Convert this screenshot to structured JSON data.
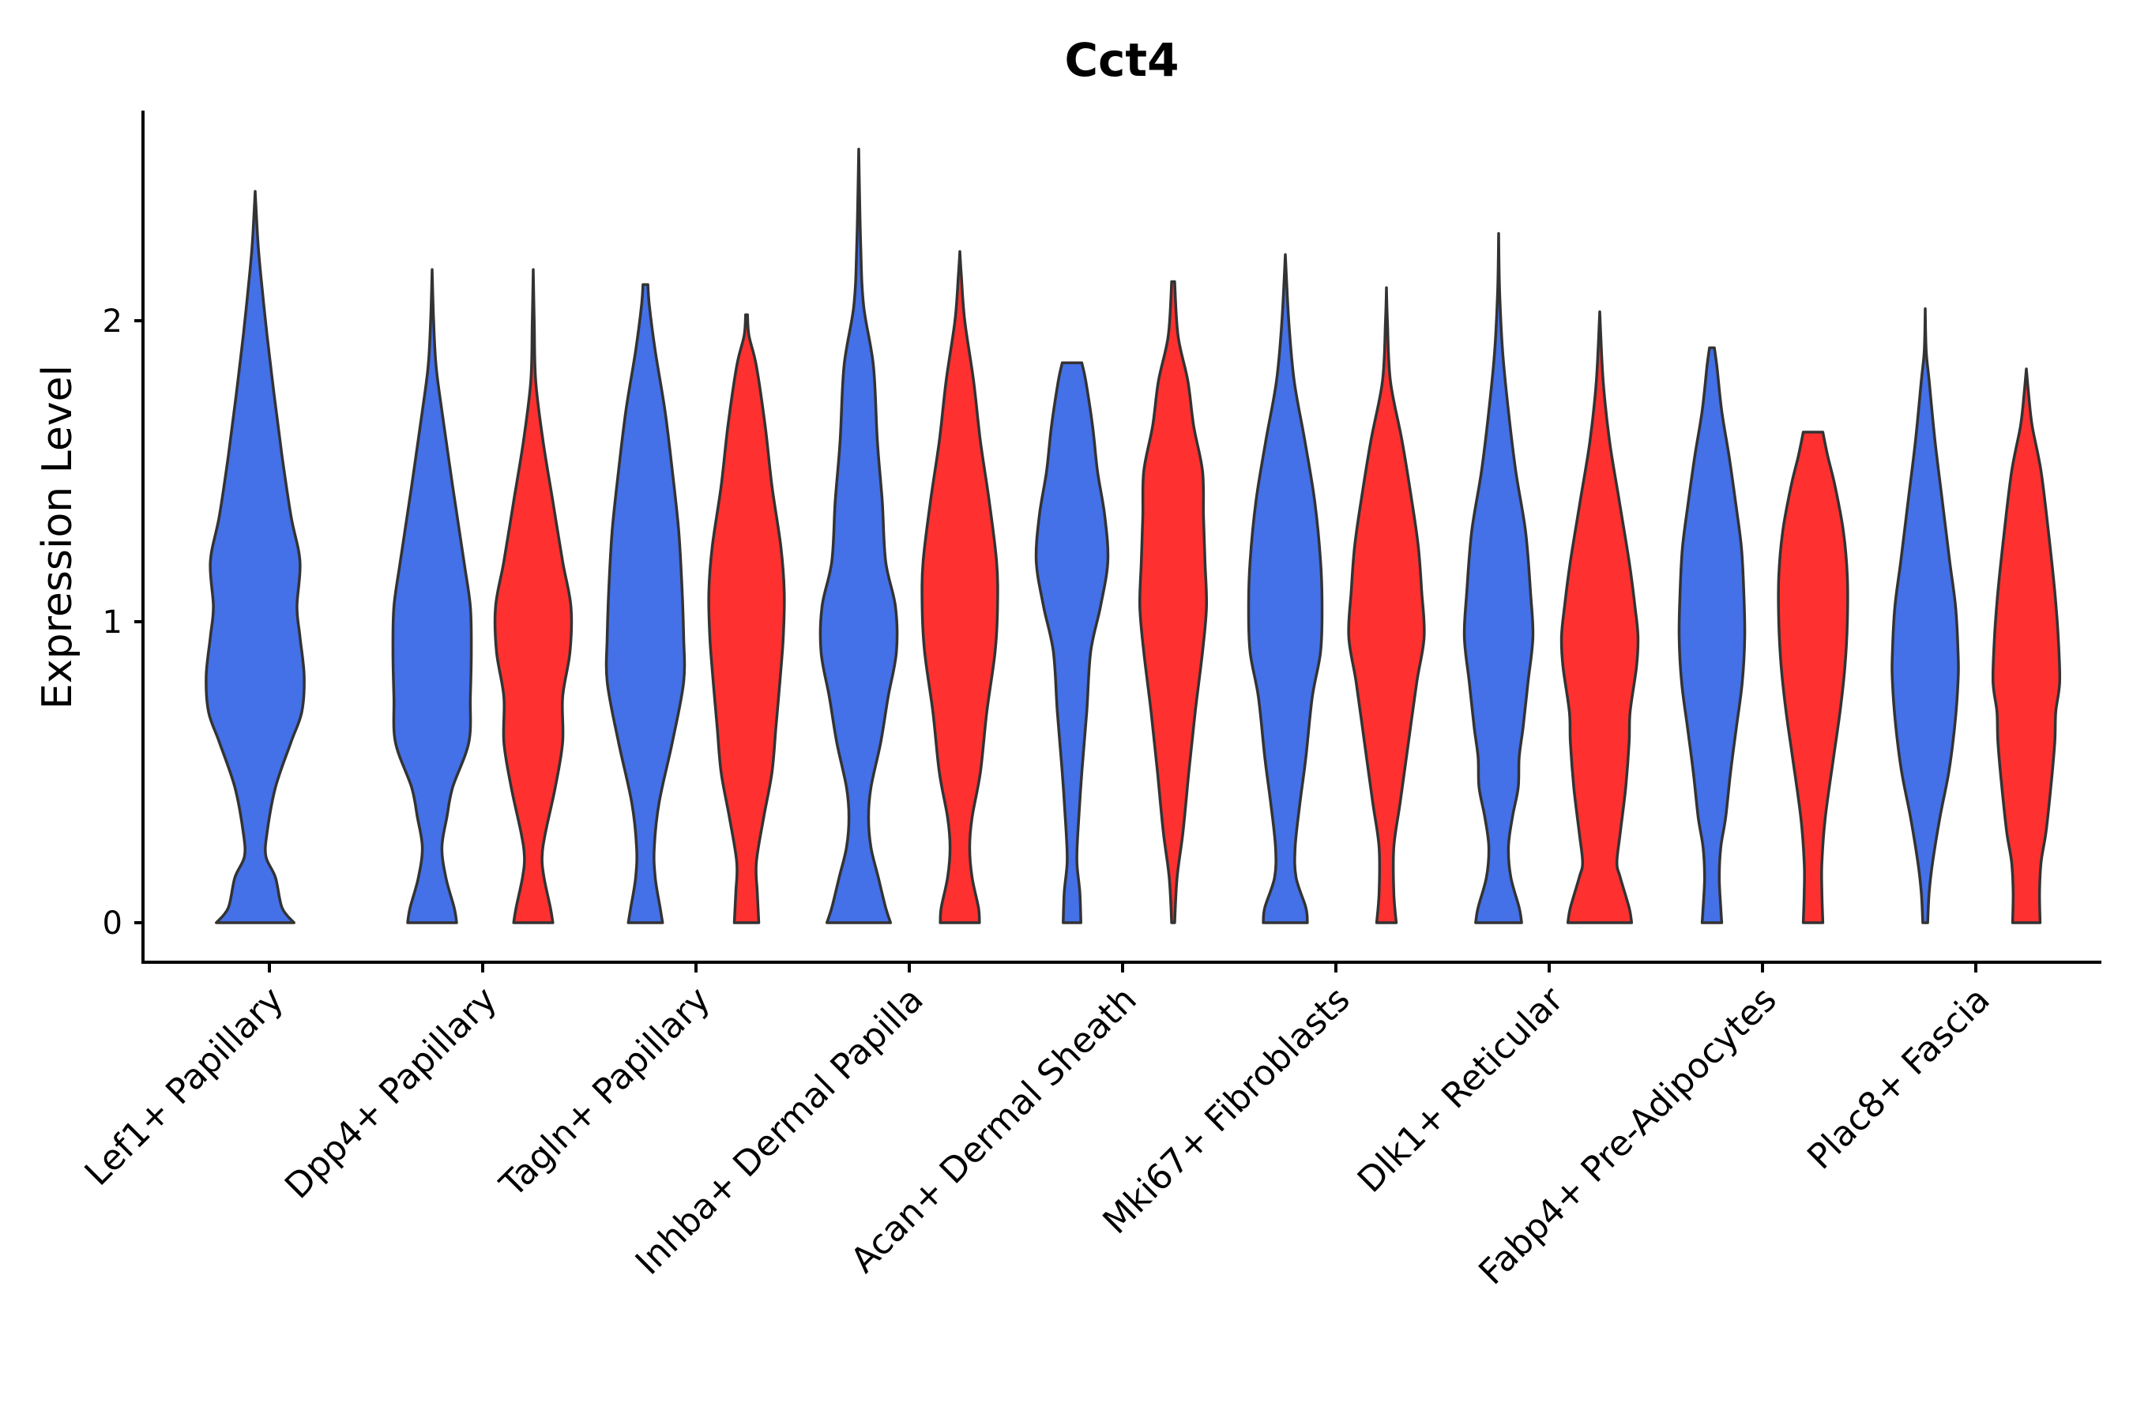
{
  "chart_data": {
    "type": "violin",
    "title": "Cct4",
    "xlabel": "",
    "ylabel": "Expression Level",
    "ylim": [
      -0.13,
      2.7
    ],
    "yticks": [
      0,
      1,
      2
    ],
    "grid": false,
    "legend": "none",
    "categories": [
      "Lef1+ Papillary",
      "Dpp4+ Papillary",
      "Tagln+ Papillary",
      "Inhba+ Dermal Papilla",
      "Acan+ Dermal Sheath",
      "Mki67+ Fibroblasts",
      "Dlk1+ Reticular",
      "Fabp4+ Pre-Adipocytes",
      "Plac8+ Fascia"
    ],
    "colors": {
      "blue": "#4470e8",
      "red": "#ff3030"
    },
    "violins": [
      {
        "category": "Lef1+ Papillary",
        "split": "blue",
        "color": "#4470e8",
        "min": 0,
        "max": 2.43,
        "profile": [
          [
            0,
            0.65
          ],
          [
            0.05,
            0.45
          ],
          [
            0.15,
            0.34
          ],
          [
            0.22,
            0.18
          ],
          [
            0.3,
            0.2
          ],
          [
            0.45,
            0.34
          ],
          [
            0.6,
            0.6
          ],
          [
            0.7,
            0.78
          ],
          [
            0.82,
            0.82
          ],
          [
            0.95,
            0.75
          ],
          [
            1.05,
            0.7
          ],
          [
            1.2,
            0.75
          ],
          [
            1.35,
            0.6
          ],
          [
            1.55,
            0.45
          ],
          [
            1.75,
            0.32
          ],
          [
            1.95,
            0.2
          ],
          [
            2.1,
            0.12
          ],
          [
            2.25,
            0.05
          ],
          [
            2.43,
            0
          ]
        ]
      },
      {
        "category": "Dpp4+ Papillary",
        "split": "blue",
        "color": "#4470e8",
        "min": 0,
        "max": 2.17,
        "profile": [
          [
            0,
            0.5
          ],
          [
            0.05,
            0.45
          ],
          [
            0.15,
            0.28
          ],
          [
            0.25,
            0.2
          ],
          [
            0.35,
            0.3
          ],
          [
            0.45,
            0.42
          ],
          [
            0.6,
            0.75
          ],
          [
            0.75,
            0.78
          ],
          [
            0.9,
            0.8
          ],
          [
            1.05,
            0.78
          ],
          [
            1.2,
            0.65
          ],
          [
            1.45,
            0.42
          ],
          [
            1.7,
            0.2
          ],
          [
            1.85,
            0.08
          ],
          [
            2.0,
            0.03
          ],
          [
            2.17,
            0
          ]
        ]
      },
      {
        "category": "Dpp4+ Papillary",
        "split": "red",
        "color": "#ff3030",
        "min": 0,
        "max": 2.17,
        "profile": [
          [
            0,
            0.4
          ],
          [
            0.05,
            0.35
          ],
          [
            0.15,
            0.22
          ],
          [
            0.22,
            0.18
          ],
          [
            0.3,
            0.25
          ],
          [
            0.45,
            0.45
          ],
          [
            0.6,
            0.6
          ],
          [
            0.75,
            0.6
          ],
          [
            0.9,
            0.75
          ],
          [
            1.05,
            0.77
          ],
          [
            1.2,
            0.6
          ],
          [
            1.4,
            0.4
          ],
          [
            1.6,
            0.2
          ],
          [
            1.8,
            0.05
          ],
          [
            2.0,
            0.02
          ],
          [
            2.17,
            0
          ]
        ]
      },
      {
        "category": "Tagln+ Papillary",
        "split": "blue",
        "color": "#4470e8",
        "min": 0,
        "max": 2.12,
        "profile": [
          [
            0,
            0.35
          ],
          [
            0.05,
            0.3
          ],
          [
            0.15,
            0.2
          ],
          [
            0.25,
            0.18
          ],
          [
            0.4,
            0.28
          ],
          [
            0.6,
            0.55
          ],
          [
            0.8,
            0.78
          ],
          [
            0.95,
            0.78
          ],
          [
            1.1,
            0.75
          ],
          [
            1.3,
            0.68
          ],
          [
            1.5,
            0.55
          ],
          [
            1.7,
            0.4
          ],
          [
            1.9,
            0.2
          ],
          [
            2.05,
            0.08
          ],
          [
            2.12,
            0.05
          ]
        ]
      },
      {
        "category": "Tagln+ Papillary",
        "split": "red",
        "color": "#ff3030",
        "min": 0,
        "max": 2.02,
        "profile": [
          [
            0,
            0.25
          ],
          [
            0.1,
            0.22
          ],
          [
            0.2,
            0.2
          ],
          [
            0.35,
            0.35
          ],
          [
            0.5,
            0.52
          ],
          [
            0.65,
            0.6
          ],
          [
            0.8,
            0.68
          ],
          [
            0.95,
            0.75
          ],
          [
            1.1,
            0.77
          ],
          [
            1.25,
            0.7
          ],
          [
            1.45,
            0.52
          ],
          [
            1.65,
            0.38
          ],
          [
            1.85,
            0.2
          ],
          [
            1.95,
            0.05
          ],
          [
            2.02,
            0.02
          ]
        ]
      },
      {
        "category": "Inhba+ Dermal Papilla",
        "split": "blue",
        "color": "#4470e8",
        "min": 0,
        "max": 2.57,
        "profile": [
          [
            0,
            0.65
          ],
          [
            0.05,
            0.55
          ],
          [
            0.15,
            0.4
          ],
          [
            0.25,
            0.25
          ],
          [
            0.35,
            0.2
          ],
          [
            0.45,
            0.25
          ],
          [
            0.6,
            0.45
          ],
          [
            0.75,
            0.6
          ],
          [
            0.9,
            0.77
          ],
          [
            1.05,
            0.75
          ],
          [
            1.2,
            0.55
          ],
          [
            1.4,
            0.48
          ],
          [
            1.6,
            0.38
          ],
          [
            1.85,
            0.3
          ],
          [
            2.05,
            0.1
          ],
          [
            2.25,
            0.04
          ],
          [
            2.57,
            0
          ]
        ]
      },
      {
        "category": "Inhba+ Dermal Papilla",
        "split": "red",
        "color": "#ff3030",
        "min": 0,
        "max": 2.23,
        "profile": [
          [
            0,
            0.4
          ],
          [
            0.05,
            0.38
          ],
          [
            0.15,
            0.25
          ],
          [
            0.25,
            0.2
          ],
          [
            0.35,
            0.25
          ],
          [
            0.5,
            0.42
          ],
          [
            0.7,
            0.55
          ],
          [
            0.9,
            0.72
          ],
          [
            1.05,
            0.77
          ],
          [
            1.2,
            0.75
          ],
          [
            1.4,
            0.6
          ],
          [
            1.6,
            0.42
          ],
          [
            1.8,
            0.28
          ],
          [
            2.0,
            0.1
          ],
          [
            2.15,
            0.03
          ],
          [
            2.23,
            0
          ]
        ]
      },
      {
        "category": "Acan+ Dermal Sheath",
        "split": "blue",
        "color": "#4470e8",
        "min": 0,
        "max": 1.86,
        "profile": [
          [
            0,
            0.18
          ],
          [
            0.1,
            0.16
          ],
          [
            0.2,
            0.1
          ],
          [
            0.3,
            0.12
          ],
          [
            0.5,
            0.2
          ],
          [
            0.7,
            0.3
          ],
          [
            0.9,
            0.38
          ],
          [
            1.05,
            0.58
          ],
          [
            1.2,
            0.73
          ],
          [
            1.35,
            0.67
          ],
          [
            1.5,
            0.52
          ],
          [
            1.65,
            0.42
          ],
          [
            1.8,
            0.28
          ],
          [
            1.86,
            0.2
          ]
        ]
      },
      {
        "category": "Acan+ Dermal Sheath",
        "split": "red",
        "color": "#ff3030",
        "min": 0,
        "max": 2.13,
        "profile": [
          [
            0,
            0.03
          ],
          [
            0.15,
            0.08
          ],
          [
            0.3,
            0.2
          ],
          [
            0.5,
            0.32
          ],
          [
            0.7,
            0.45
          ],
          [
            0.9,
            0.6
          ],
          [
            1.05,
            0.68
          ],
          [
            1.2,
            0.65
          ],
          [
            1.35,
            0.62
          ],
          [
            1.5,
            0.6
          ],
          [
            1.65,
            0.42
          ],
          [
            1.8,
            0.3
          ],
          [
            1.95,
            0.1
          ],
          [
            2.13,
            0.03
          ]
        ]
      },
      {
        "category": "Mki67+ Fibroblasts",
        "split": "blue",
        "color": "#4470e8",
        "min": 0,
        "max": 2.22,
        "profile": [
          [
            0,
            0.45
          ],
          [
            0.05,
            0.42
          ],
          [
            0.15,
            0.22
          ],
          [
            0.25,
            0.2
          ],
          [
            0.4,
            0.3
          ],
          [
            0.55,
            0.42
          ],
          [
            0.75,
            0.55
          ],
          [
            0.9,
            0.72
          ],
          [
            1.05,
            0.75
          ],
          [
            1.2,
            0.72
          ],
          [
            1.4,
            0.6
          ],
          [
            1.6,
            0.4
          ],
          [
            1.8,
            0.18
          ],
          [
            2.0,
            0.07
          ],
          [
            2.22,
            0
          ]
        ]
      },
      {
        "category": "Mki67+ Fibroblasts",
        "split": "red",
        "color": "#ff3030",
        "min": 0,
        "max": 2.11,
        "profile": [
          [
            0,
            0.2
          ],
          [
            0.1,
            0.15
          ],
          [
            0.25,
            0.15
          ],
          [
            0.4,
            0.28
          ],
          [
            0.6,
            0.45
          ],
          [
            0.8,
            0.62
          ],
          [
            0.95,
            0.77
          ],
          [
            1.1,
            0.72
          ],
          [
            1.25,
            0.65
          ],
          [
            1.4,
            0.52
          ],
          [
            1.6,
            0.32
          ],
          [
            1.8,
            0.08
          ],
          [
            2.0,
            0.02
          ],
          [
            2.11,
            0
          ]
        ]
      },
      {
        "category": "Dlk1+ Reticular",
        "split": "blue",
        "color": "#4470e8",
        "min": 0,
        "max": 2.29,
        "profile": [
          [
            0,
            0.47
          ],
          [
            0.05,
            0.42
          ],
          [
            0.15,
            0.25
          ],
          [
            0.25,
            0.2
          ],
          [
            0.35,
            0.28
          ],
          [
            0.45,
            0.4
          ],
          [
            0.55,
            0.42
          ],
          [
            0.65,
            0.5
          ],
          [
            0.8,
            0.6
          ],
          [
            0.95,
            0.7
          ],
          [
            1.1,
            0.65
          ],
          [
            1.3,
            0.55
          ],
          [
            1.5,
            0.35
          ],
          [
            1.7,
            0.2
          ],
          [
            1.9,
            0.08
          ],
          [
            2.1,
            0.02
          ],
          [
            2.29,
            0
          ]
        ]
      },
      {
        "category": "Dlk1+ Reticular",
        "split": "red",
        "color": "#ff3030",
        "min": 0,
        "max": 2.03,
        "profile": [
          [
            0,
            0.65
          ],
          [
            0.05,
            0.6
          ],
          [
            0.15,
            0.42
          ],
          [
            0.2,
            0.35
          ],
          [
            0.3,
            0.42
          ],
          [
            0.45,
            0.53
          ],
          [
            0.6,
            0.6
          ],
          [
            0.7,
            0.62
          ],
          [
            0.85,
            0.75
          ],
          [
            0.95,
            0.78
          ],
          [
            1.05,
            0.72
          ],
          [
            1.2,
            0.6
          ],
          [
            1.4,
            0.4
          ],
          [
            1.6,
            0.2
          ],
          [
            1.8,
            0.07
          ],
          [
            2.03,
            0
          ]
        ]
      },
      {
        "category": "Fabp4+ Pre-Adipocytes",
        "split": "blue",
        "color": "#4470e8",
        "min": 0,
        "max": 1.91,
        "profile": [
          [
            0,
            0.2
          ],
          [
            0.05,
            0.18
          ],
          [
            0.15,
            0.15
          ],
          [
            0.25,
            0.18
          ],
          [
            0.35,
            0.28
          ],
          [
            0.5,
            0.38
          ],
          [
            0.65,
            0.5
          ],
          [
            0.8,
            0.62
          ],
          [
            0.95,
            0.67
          ],
          [
            1.1,
            0.65
          ],
          [
            1.25,
            0.6
          ],
          [
            1.4,
            0.48
          ],
          [
            1.55,
            0.35
          ],
          [
            1.7,
            0.2
          ],
          [
            1.85,
            0.1
          ],
          [
            1.91,
            0.05
          ]
        ]
      },
      {
        "category": "Fabp4+ Pre-Adipocytes",
        "split": "red",
        "color": "#ff3030",
        "min": 0,
        "max": 1.63,
        "profile": [
          [
            0,
            0.2
          ],
          [
            0.1,
            0.18
          ],
          [
            0.2,
            0.18
          ],
          [
            0.35,
            0.25
          ],
          [
            0.55,
            0.42
          ],
          [
            0.7,
            0.55
          ],
          [
            0.85,
            0.65
          ],
          [
            1.0,
            0.7
          ],
          [
            1.15,
            0.7
          ],
          [
            1.3,
            0.62
          ],
          [
            1.45,
            0.45
          ],
          [
            1.55,
            0.3
          ],
          [
            1.63,
            0.2
          ]
        ]
      },
      {
        "category": "Plac8+ Fascia",
        "split": "blue",
        "color": "#4470e8",
        "min": 0,
        "max": 2.04,
        "profile": [
          [
            0,
            0.05
          ],
          [
            0.1,
            0.08
          ],
          [
            0.2,
            0.15
          ],
          [
            0.35,
            0.3
          ],
          [
            0.5,
            0.48
          ],
          [
            0.65,
            0.6
          ],
          [
            0.8,
            0.67
          ],
          [
            0.9,
            0.67
          ],
          [
            1.05,
            0.62
          ],
          [
            1.2,
            0.5
          ],
          [
            1.4,
            0.35
          ],
          [
            1.6,
            0.2
          ],
          [
            1.8,
            0.08
          ],
          [
            1.9,
            0.02
          ],
          [
            2.04,
            0
          ]
        ]
      },
      {
        "category": "Plac8+ Fascia",
        "split": "red",
        "color": "#ff3030",
        "min": 0,
        "max": 1.84,
        "profile": [
          [
            0,
            0.28
          ],
          [
            0.1,
            0.27
          ],
          [
            0.2,
            0.3
          ],
          [
            0.3,
            0.4
          ],
          [
            0.45,
            0.5
          ],
          [
            0.6,
            0.58
          ],
          [
            0.7,
            0.6
          ],
          [
            0.8,
            0.68
          ],
          [
            0.95,
            0.65
          ],
          [
            1.1,
            0.58
          ],
          [
            1.3,
            0.45
          ],
          [
            1.5,
            0.3
          ],
          [
            1.65,
            0.12
          ],
          [
            1.75,
            0.05
          ],
          [
            1.84,
            0
          ]
        ]
      }
    ]
  }
}
